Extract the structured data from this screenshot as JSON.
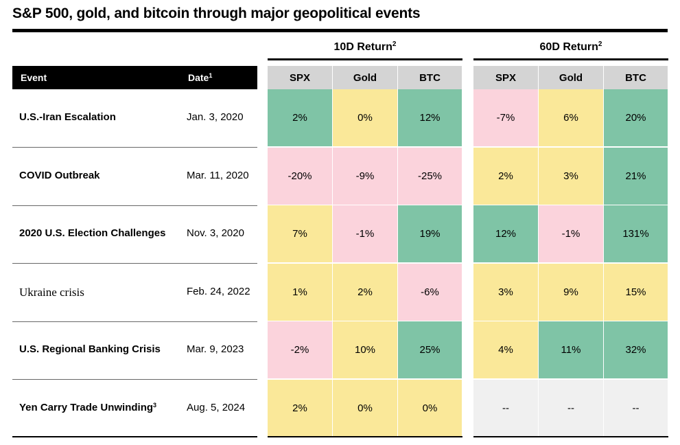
{
  "title": "S&P 500, gold, and bitcoin through major geopolitical events",
  "groups": {
    "g10": {
      "label": "10D Return",
      "sup": "2"
    },
    "g60": {
      "label": "60D Return",
      "sup": "2"
    }
  },
  "header": {
    "event": "Event",
    "date": "Date",
    "date_sup": "1"
  },
  "columns": [
    "SPX",
    "Gold",
    "BTC"
  ],
  "colors": {
    "green": "#7fc4a6",
    "yellow": "#fae899",
    "pink": "#fbd3dc",
    "gray": "#f0f0f0"
  },
  "chart_data": {
    "type": "table",
    "title": "S&P 500, gold, and bitcoin through major geopolitical events",
    "column_groups": [
      "10D Return",
      "60D Return"
    ],
    "columns": [
      "SPX",
      "Gold",
      "BTC"
    ],
    "rows": [
      {
        "event": "U.S.-Iran Escalation",
        "event_sup": "",
        "date": "Jan. 3, 2020",
        "r10": [
          "2%",
          "0%",
          "12%"
        ],
        "r60": [
          "-7%",
          "6%",
          "20%"
        ],
        "c10": [
          "green",
          "yellow",
          "green"
        ],
        "c60": [
          "pink",
          "yellow",
          "green"
        ]
      },
      {
        "event": "COVID Outbreak",
        "event_sup": "",
        "date": "Mar. 11, 2020",
        "r10": [
          "-20%",
          "-9%",
          "-25%"
        ],
        "r60": [
          "2%",
          "3%",
          "21%"
        ],
        "c10": [
          "pink",
          "pink",
          "pink"
        ],
        "c60": [
          "yellow",
          "yellow",
          "green"
        ]
      },
      {
        "event": "2020 U.S. Election Challenges",
        "event_sup": "",
        "date": "Nov. 3, 2020",
        "r10": [
          "7%",
          "-1%",
          "19%"
        ],
        "r60": [
          "12%",
          "-1%",
          "131%"
        ],
        "c10": [
          "yellow",
          "pink",
          "green"
        ],
        "c60": [
          "green",
          "pink",
          "green"
        ]
      },
      {
        "event": "Ukraine crisis",
        "event_sup": "",
        "date": "Feb. 24, 2022",
        "r10": [
          "1%",
          "2%",
          "-6%"
        ],
        "r60": [
          "3%",
          "9%",
          "15%"
        ],
        "c10": [
          "yellow",
          "yellow",
          "pink"
        ],
        "c60": [
          "yellow",
          "yellow",
          "yellow"
        ]
      },
      {
        "event": "U.S. Regional Banking Crisis",
        "event_sup": "",
        "date": "Mar. 9, 2023",
        "r10": [
          "-2%",
          "10%",
          "25%"
        ],
        "r60": [
          "4%",
          "11%",
          "32%"
        ],
        "c10": [
          "pink",
          "yellow",
          "green"
        ],
        "c60": [
          "yellow",
          "green",
          "green"
        ]
      },
      {
        "event": "Yen Carry Trade Unwinding",
        "event_sup": "3",
        "date": "Aug. 5, 2024",
        "r10": [
          "2%",
          "0%",
          "0%"
        ],
        "r60": [
          "--",
          "--",
          "--"
        ],
        "c10": [
          "yellow",
          "yellow",
          "yellow"
        ],
        "c60": [
          "gray",
          "gray",
          "gray"
        ]
      }
    ]
  }
}
